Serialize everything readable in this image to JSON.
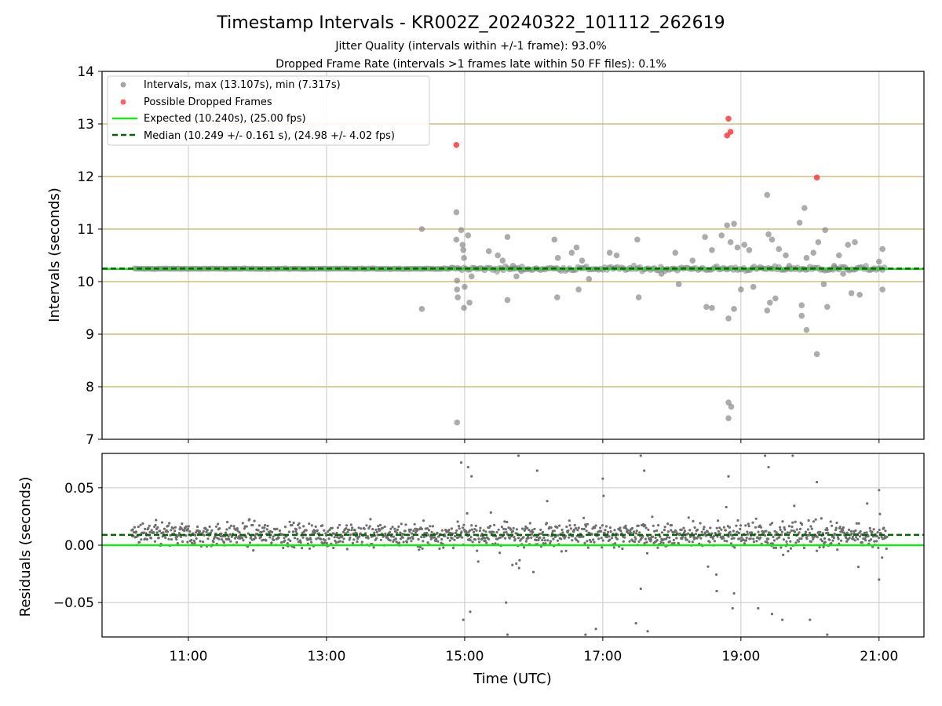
{
  "figure": {
    "title": "Timestamp Intervals - KR002Z_20240322_101112_262619",
    "subtitle_1": "Jitter Quality (intervals within +/-1 frame): 93.0%",
    "subtitle_2": "Dropped Frame Rate (intervals >1 frames late within 50 FF files): 0.1%",
    "xlabel": "Time (UTC)"
  },
  "colors": {
    "intervals": "#808080",
    "dropped": "#ff3b3b",
    "expected": "#19e619",
    "median": "#006400",
    "hline": "#c8b060",
    "grid": "#c8c8c8",
    "residual_points": "#6e6e6e"
  },
  "legend": {
    "intervals": "Intervals, max (13.107s), min (7.317s)",
    "dropped": "Possible Dropped Frames",
    "expected": "Expected (10.240s), (25.00 fps)",
    "median": "Median (10.249 +/- 0.161 s), (24.98 +/- 4.02 fps)"
  },
  "chart_data": [
    {
      "type": "scatter",
      "ylabel": "Intervals (seconds)",
      "ylim": [
        7,
        14
      ],
      "yticks": [
        "7",
        "8",
        "9",
        "10",
        "11",
        "12",
        "13",
        "14"
      ],
      "xlim_hours": [
        9.75,
        21.65
      ],
      "grid": "vertical",
      "legend_position": "top-left",
      "expected": 10.24,
      "median": 10.249,
      "horizontal_lines": [
        8,
        9,
        10,
        11,
        12,
        13
      ],
      "series": [
        {
          "name": "Intervals, max (13.107s), min (7.317s)",
          "points": [
            [
              14.38,
              11.0
            ],
            [
              14.38,
              9.48
            ],
            [
              14.88,
              11.32
            ],
            [
              14.88,
              10.8
            ],
            [
              14.89,
              10.02
            ],
            [
              14.89,
              9.85
            ],
            [
              14.9,
              9.7
            ],
            [
              14.89,
              7.32
            ],
            [
              14.95,
              10.98
            ],
            [
              14.97,
              10.7
            ],
            [
              14.98,
              10.6
            ],
            [
              14.99,
              10.45
            ],
            [
              15.0,
              9.9
            ],
            [
              14.99,
              9.5
            ],
            [
              15.05,
              10.88
            ],
            [
              15.1,
              10.1
            ],
            [
              15.07,
              9.6
            ],
            [
              15.35,
              10.58
            ],
            [
              15.48,
              10.5
            ],
            [
              15.55,
              10.4
            ],
            [
              15.62,
              10.85
            ],
            [
              15.62,
              9.65
            ],
            [
              15.7,
              10.3
            ],
            [
              15.75,
              10.1
            ],
            [
              15.82,
              10.2
            ],
            [
              16.3,
              10.8
            ],
            [
              16.35,
              10.45
            ],
            [
              16.34,
              9.7
            ],
            [
              16.55,
              10.55
            ],
            [
              16.62,
              10.65
            ],
            [
              16.65,
              9.85
            ],
            [
              16.7,
              10.4
            ],
            [
              16.8,
              10.05
            ],
            [
              17.1,
              10.55
            ],
            [
              17.2,
              10.5
            ],
            [
              17.5,
              10.8
            ],
            [
              17.52,
              9.7
            ],
            [
              17.85,
              10.15
            ],
            [
              18.05,
              10.55
            ],
            [
              18.1,
              9.95
            ],
            [
              18.3,
              10.4
            ],
            [
              18.48,
              10.85
            ],
            [
              18.5,
              9.52
            ],
            [
              18.58,
              10.6
            ],
            [
              18.58,
              9.5
            ],
            [
              18.72,
              10.88
            ],
            [
              18.8,
              11.07
            ],
            [
              18.82,
              9.3
            ],
            [
              18.85,
              10.75
            ],
            [
              18.9,
              11.1
            ],
            [
              18.82,
              7.7
            ],
            [
              18.86,
              7.62
            ],
            [
              18.82,
              7.4
            ],
            [
              18.9,
              9.48
            ],
            [
              18.95,
              10.65
            ],
            [
              19.0,
              9.85
            ],
            [
              19.05,
              10.7
            ],
            [
              19.12,
              10.6
            ],
            [
              19.18,
              9.9
            ],
            [
              19.38,
              11.65
            ],
            [
              19.4,
              10.9
            ],
            [
              19.42,
              9.6
            ],
            [
              19.38,
              9.45
            ],
            [
              19.45,
              10.8
            ],
            [
              19.5,
              9.68
            ],
            [
              19.55,
              10.62
            ],
            [
              19.65,
              10.5
            ],
            [
              19.7,
              10.3
            ],
            [
              19.85,
              11.12
            ],
            [
              19.88,
              9.55
            ],
            [
              19.88,
              9.35
            ],
            [
              19.92,
              11.4
            ],
            [
              19.95,
              10.45
            ],
            [
              19.95,
              9.08
            ],
            [
              20.05,
              10.55
            ],
            [
              20.1,
              8.62
            ],
            [
              20.12,
              10.75
            ],
            [
              20.2,
              9.95
            ],
            [
              20.22,
              10.98
            ],
            [
              20.25,
              9.52
            ],
            [
              20.35,
              10.3
            ],
            [
              20.42,
              10.5
            ],
            [
              20.48,
              10.15
            ],
            [
              20.55,
              10.7
            ],
            [
              20.6,
              9.78
            ],
            [
              20.65,
              10.75
            ],
            [
              20.72,
              9.75
            ],
            [
              21.0,
              10.38
            ],
            [
              21.05,
              10.62
            ],
            [
              21.05,
              9.85
            ]
          ]
        },
        {
          "name": "Possible Dropped Frames",
          "points": [
            [
              14.88,
              12.6
            ],
            [
              18.82,
              13.1
            ],
            [
              18.85,
              12.85
            ],
            [
              18.8,
              12.78
            ],
            [
              20.1,
              11.98
            ]
          ]
        }
      ]
    },
    {
      "type": "scatter",
      "ylabel": "Residuals (seconds)",
      "ylim": [
        -0.08,
        0.08
      ],
      "yticks": [
        "−0.05",
        "0.00",
        "0.05"
      ],
      "xlim_hours": [
        9.75,
        21.65
      ],
      "xticks": [
        "11:00",
        "13:00",
        "15:00",
        "17:00",
        "19:00",
        "21:00"
      ],
      "grid": "both",
      "expected": 0.0,
      "median": 0.009,
      "series": [
        {
          "name": "",
          "points": [
            [
              14.95,
              0.072
            ],
            [
              15.05,
              0.068
            ],
            [
              15.1,
              0.06
            ],
            [
              14.98,
              -0.065
            ],
            [
              15.08,
              -0.058
            ],
            [
              15.6,
              -0.05
            ],
            [
              15.62,
              -0.078
            ],
            [
              15.78,
              0.078
            ],
            [
              16.05,
              0.065
            ],
            [
              16.75,
              -0.078
            ],
            [
              16.9,
              -0.073
            ],
            [
              17.0,
              0.058
            ],
            [
              17.55,
              0.078
            ],
            [
              17.6,
              0.065
            ],
            [
              17.48,
              -0.068
            ],
            [
              17.55,
              -0.038
            ],
            [
              17.65,
              -0.075
            ],
            [
              18.65,
              -0.04
            ],
            [
              18.82,
              0.06
            ],
            [
              18.88,
              -0.055
            ],
            [
              18.9,
              -0.042
            ],
            [
              19.35,
              0.078
            ],
            [
              19.4,
              0.068
            ],
            [
              19.25,
              -0.055
            ],
            [
              19.45,
              -0.06
            ],
            [
              19.6,
              -0.065
            ],
            [
              19.75,
              0.078
            ],
            [
              20.0,
              -0.065
            ],
            [
              20.1,
              0.055
            ],
            [
              20.25,
              -0.078
            ],
            [
              21.0,
              0.048
            ],
            [
              21.0,
              -0.03
            ]
          ]
        }
      ]
    }
  ]
}
